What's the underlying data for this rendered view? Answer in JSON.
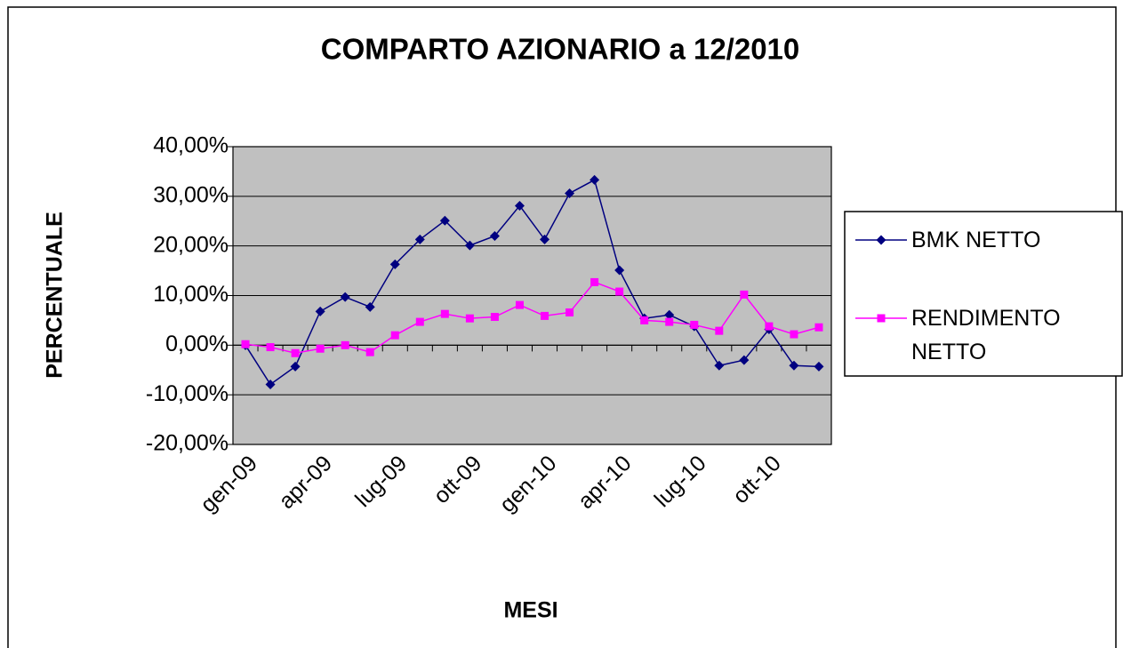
{
  "chart_data": {
    "type": "line",
    "title": "COMPARTO AZIONARIO a 12/2010",
    "x_label": "MESI",
    "y_label": "PERCENTUALE",
    "categories": [
      "gen-09",
      null,
      null,
      "apr-09",
      null,
      null,
      "lug-09",
      null,
      null,
      "ott-09",
      null,
      null,
      "gen-10",
      null,
      null,
      "apr-10",
      null,
      null,
      "lug-10",
      null,
      null,
      "ott-10",
      null,
      null
    ],
    "series": [
      {
        "name": "BMK NETTO",
        "color": "#000080",
        "marker": "diamond",
        "values": [
          0,
          -7.9,
          -4.3,
          6.8,
          9.7,
          7.7,
          16.3,
          21.3,
          25.1,
          20.1,
          22.0,
          28.1,
          21.3,
          30.6,
          33.3,
          15.1,
          5.4,
          6.1,
          3.8,
          -4.1,
          -3.0,
          3.2,
          -4.1,
          -4.3
        ]
      },
      {
        "name": "RENDIMENTO NETTO",
        "color": "#ff00ff",
        "marker": "square",
        "values": [
          0.2,
          -0.4,
          -1.6,
          -0.7,
          0,
          -1.4,
          2.0,
          4.7,
          6.3,
          5.4,
          5.7,
          8.1,
          5.9,
          6.6,
          12.7,
          10.8,
          5.0,
          4.7,
          4.1,
          2.9,
          10.2,
          3.8,
          2.2,
          3.6
        ]
      }
    ],
    "ylim": [
      -20,
      40
    ],
    "yticks": [
      {
        "value": -20,
        "label": "-20,00%"
      },
      {
        "value": -10,
        "label": "-10,00%"
      },
      {
        "value": 0,
        "label": "0,00%"
      },
      {
        "value": 10,
        "label": "10,00%"
      },
      {
        "value": 20,
        "label": "20,00%"
      },
      {
        "value": 30,
        "label": "30,00%"
      },
      {
        "value": 40,
        "label": "40,00%"
      }
    ],
    "grid": true,
    "legend": "right",
    "plot_background": "#c0c0c0"
  }
}
